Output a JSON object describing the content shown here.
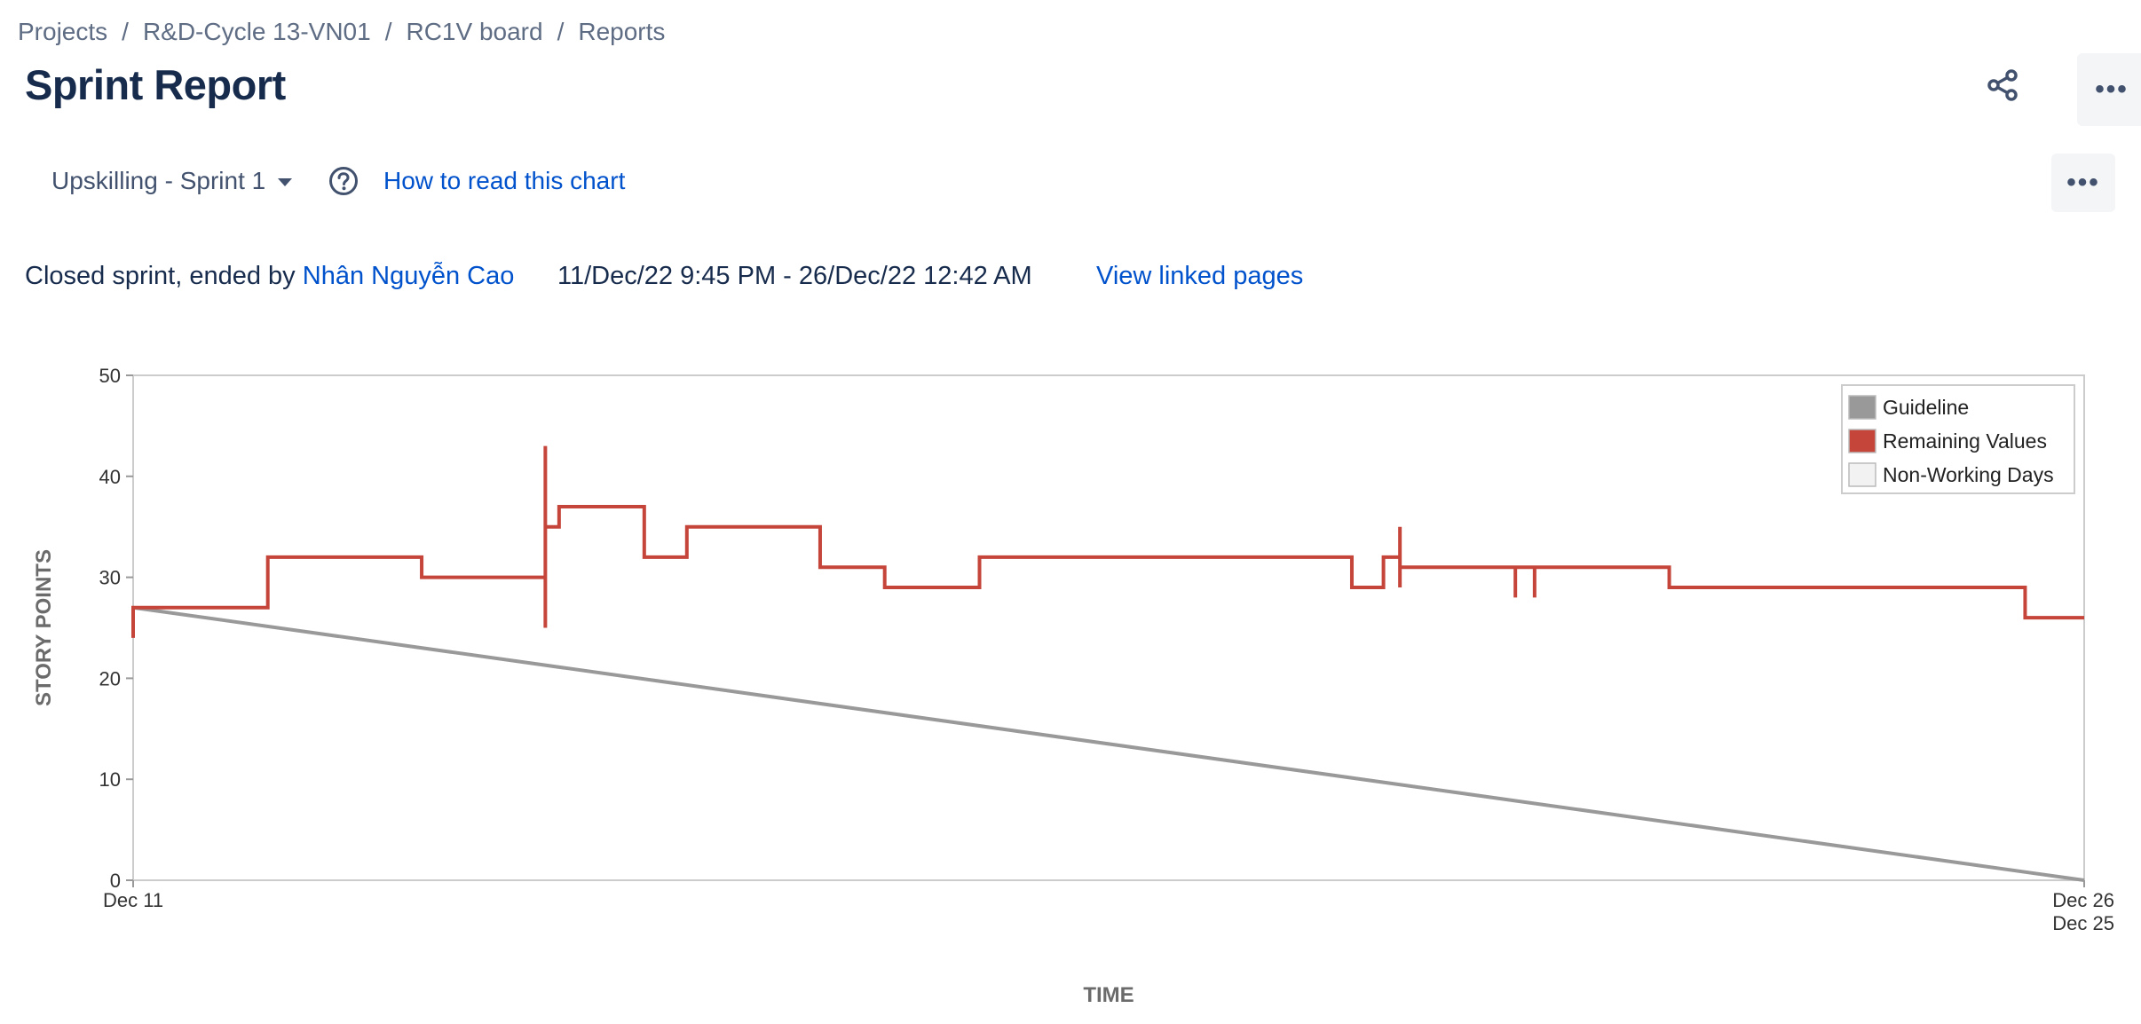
{
  "breadcrumb": [
    "Projects",
    "R&D-Cycle 13-VN01",
    "RC1V board",
    "Reports"
  ],
  "page_title": "Sprint Report",
  "header_actions": {
    "share_icon": "share-icon",
    "more_icon": "more-icon",
    "more_label": "•••"
  },
  "sprint_selector": {
    "value": "Upskilling - Sprint 1"
  },
  "help": {
    "icon": "question-circle-icon",
    "link_label": "How to read this chart"
  },
  "chart_more_label": "•••",
  "sprint_info": {
    "prefix": "Closed sprint, ended by ",
    "user": "Nhân Nguyễn Cao",
    "dates": "11/Dec/22 9:45 PM - 26/Dec/22 12:42 AM",
    "linked_pages": "View linked pages"
  },
  "chart_data": {
    "type": "line",
    "ylabel": "STORY POINTS",
    "xlabel": "TIME",
    "ylim": [
      0,
      50
    ],
    "yticks": [
      0,
      10,
      20,
      30,
      40,
      50
    ],
    "xlim": [
      0,
      14.2
    ],
    "x_tick_labels": [
      {
        "x": 0,
        "lines": [
          "Dec 11"
        ]
      },
      {
        "x": 14.2,
        "lines": [
          "Dec 26",
          "Dec 25"
        ]
      }
    ],
    "legend": {
      "position": "top-right",
      "items": [
        {
          "label": "Guideline",
          "color": "#999999"
        },
        {
          "label": "Remaining Values",
          "color": "#c5453b"
        },
        {
          "label": "Non-Working Days",
          "color": "#f2f2f2"
        }
      ]
    },
    "grid": false,
    "series": [
      {
        "name": "Guideline",
        "color": "#999999",
        "x": [
          0,
          14.2
        ],
        "y": [
          27,
          0
        ]
      },
      {
        "name": "Remaining Values",
        "color": "#c5453b",
        "step": true,
        "x": [
          0,
          0,
          0,
          0.98,
          2.1,
          3.0,
          3.0,
          3.0,
          3.0,
          3.1,
          3.1,
          3.72,
          4.03,
          5.0,
          5.47,
          6.16,
          8.87,
          9.1,
          9.22,
          9.22,
          9.22,
          9.22,
          10.06,
          10.06,
          10.06,
          10.2,
          10.2,
          10.2,
          11.18,
          13.77,
          14.2
        ],
        "y": [
          24,
          27,
          27,
          32,
          30,
          30,
          25,
          43,
          35,
          35,
          37,
          32,
          35,
          31,
          29,
          32,
          29,
          32,
          32,
          35,
          29,
          31,
          31,
          28,
          31,
          31,
          28,
          31,
          29,
          26,
          26
        ]
      }
    ]
  }
}
